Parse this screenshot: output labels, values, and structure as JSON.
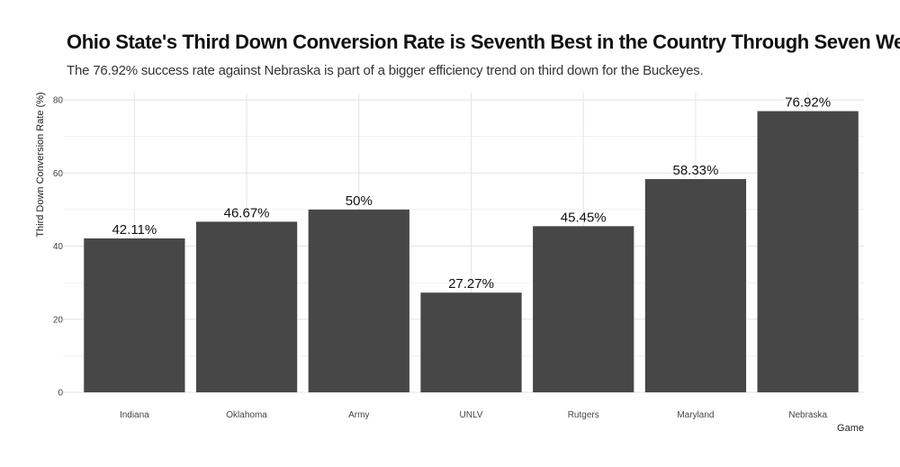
{
  "chart_data": {
    "type": "bar",
    "title": "Ohio State's Third Down Conversion Rate is Seventh Best in the Country Through Seven Weeks",
    "subtitle": "The 76.92% success rate against Nebraska is part of a bigger efficiency trend on third down for the Buckeyes.",
    "xlabel": "Game",
    "ylabel": "Third Down Conversion Rate (%)",
    "categories": [
      "Indiana",
      "Oklahoma",
      "Army",
      "UNLV",
      "Rutgers",
      "Maryland",
      "Nebraska"
    ],
    "values": [
      42.11,
      46.67,
      50,
      27.27,
      45.45,
      58.33,
      76.92
    ],
    "data_labels": [
      "42.11%",
      "46.67%",
      "50%",
      "27.27%",
      "45.45%",
      "58.33%",
      "76.92%"
    ],
    "yticks": [
      "0",
      "20",
      "40",
      "60",
      "80"
    ],
    "ylim": [
      0,
      80
    ],
    "grid": true,
    "colors": {
      "bar": "#474747",
      "grid": "#e3e3e3"
    }
  }
}
